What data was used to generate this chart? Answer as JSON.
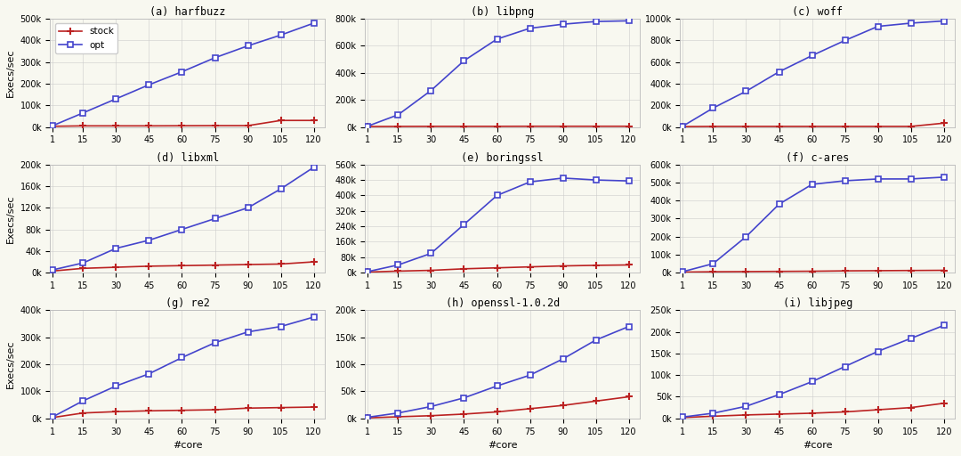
{
  "x": [
    1,
    15,
    30,
    45,
    60,
    75,
    90,
    105,
    120
  ],
  "subplots": [
    {
      "title": "(a) harfbuzz",
      "opt": [
        5000,
        65000,
        130000,
        195000,
        255000,
        320000,
        375000,
        425000,
        480000
      ],
      "stock": [
        3000,
        5000,
        5000,
        5000,
        5500,
        6000,
        6000,
        30000,
        30000
      ],
      "ylim": [
        0,
        500000
      ],
      "yticks": [
        0,
        100000,
        200000,
        300000,
        400000,
        500000
      ],
      "ylabel": "Execs/sec",
      "show_legend": true
    },
    {
      "title": "(b) libpng",
      "opt": [
        5000,
        90000,
        270000,
        490000,
        650000,
        730000,
        760000,
        780000,
        785000
      ],
      "stock": [
        3000,
        4000,
        4500,
        4500,
        4500,
        5000,
        5000,
        5000,
        5000
      ],
      "ylim": [
        0,
        800000
      ],
      "yticks": [
        0,
        200000,
        400000,
        600000,
        800000
      ],
      "ylabel": "",
      "show_legend": false
    },
    {
      "title": "(c) woff",
      "opt": [
        5000,
        175000,
        330000,
        510000,
        660000,
        800000,
        930000,
        960000,
        980000
      ],
      "stock": [
        3000,
        5000,
        5000,
        5000,
        5000,
        5000,
        5000,
        5000,
        35000
      ],
      "ylim": [
        0,
        1000000
      ],
      "yticks": [
        0,
        200000,
        400000,
        600000,
        800000,
        1000000
      ],
      "ylabel": "",
      "show_legend": false
    },
    {
      "title": "(d) libxml",
      "opt": [
        5000,
        18000,
        45000,
        60000,
        80000,
        100000,
        120000,
        155000,
        195000
      ],
      "stock": [
        3000,
        8000,
        10000,
        12000,
        13000,
        14000,
        15000,
        16000,
        20000
      ],
      "ylim": [
        0,
        200000
      ],
      "yticks": [
        0,
        40000,
        80000,
        120000,
        160000,
        200000
      ],
      "ylabel": "Execs/sec",
      "show_legend": false
    },
    {
      "title": "(e) boringssl",
      "opt": [
        5000,
        40000,
        100000,
        250000,
        400000,
        470000,
        490000,
        480000,
        475000
      ],
      "stock": [
        3000,
        8000,
        12000,
        20000,
        25000,
        30000,
        35000,
        38000,
        40000
      ],
      "ylim": [
        0,
        560000
      ],
      "yticks": [
        0,
        80000,
        160000,
        240000,
        320000,
        400000,
        480000,
        560000
      ],
      "ylabel": "",
      "show_legend": false
    },
    {
      "title": "(f) c-ares",
      "opt": [
        5000,
        50000,
        200000,
        380000,
        490000,
        510000,
        520000,
        520000,
        530000
      ],
      "stock": [
        3000,
        5000,
        6000,
        7000,
        8000,
        10000,
        11000,
        12000,
        13000
      ],
      "ylim": [
        0,
        600000
      ],
      "yticks": [
        0,
        100000,
        200000,
        300000,
        400000,
        500000,
        600000
      ],
      "ylabel": "",
      "show_legend": false
    },
    {
      "title": "(g) re2",
      "opt": [
        5000,
        65000,
        120000,
        165000,
        225000,
        280000,
        320000,
        340000,
        375000
      ],
      "stock": [
        3000,
        20000,
        25000,
        28000,
        30000,
        32000,
        38000,
        40000,
        42000
      ],
      "ylim": [
        0,
        400000
      ],
      "yticks": [
        0,
        100000,
        200000,
        300000,
        400000
      ],
      "ylabel": "Execs/sec",
      "show_legend": false
    },
    {
      "title": "(h) openssl-1.0.2d",
      "opt": [
        2000,
        10000,
        22000,
        38000,
        60000,
        80000,
        110000,
        145000,
        170000
      ],
      "stock": [
        1000,
        3000,
        5000,
        8000,
        12000,
        18000,
        24000,
        32000,
        40000
      ],
      "ylim": [
        0,
        200000
      ],
      "yticks": [
        0,
        50000,
        100000,
        150000,
        200000
      ],
      "ylabel": "",
      "show_legend": false
    },
    {
      "title": "(i) libjpeg",
      "opt": [
        3000,
        12000,
        28000,
        55000,
        85000,
        120000,
        155000,
        185000,
        215000
      ],
      "stock": [
        2000,
        5000,
        8000,
        10000,
        12000,
        15000,
        20000,
        25000,
        35000
      ],
      "ylim": [
        0,
        250000
      ],
      "yticks": [
        0,
        50000,
        100000,
        150000,
        200000,
        250000
      ],
      "ylabel": "",
      "show_legend": false
    }
  ],
  "opt_color": "#4444cc",
  "stock_color": "#bb2222",
  "bg_color": "#f8f8f0",
  "grid_color": "#cccccc",
  "xlabel": "#core"
}
